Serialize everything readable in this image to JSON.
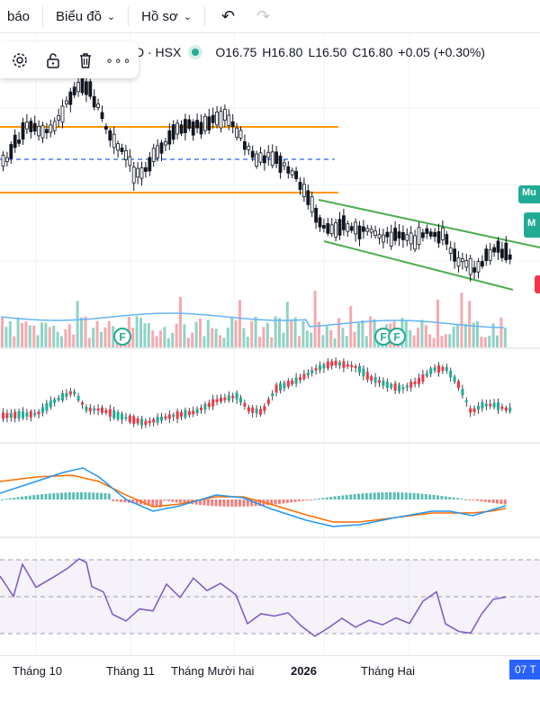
{
  "toolbar": {
    "items": [
      {
        "label": "báo",
        "chevron": false
      },
      {
        "label": "Biểu đồ",
        "chevron": true
      },
      {
        "label": "Hồ sơ",
        "chevron": true
      }
    ],
    "undo_icon": "undo-icon",
    "redo_icon": "redo-icon"
  },
  "legend": {
    "symbol": "D · HSX",
    "open": "O16.75",
    "high": "H16.80",
    "low": "L16.50",
    "close": "C16.80",
    "change": "+0.05 (+0.30%)",
    "status_color": "#22ab94"
  },
  "floating_toolbar": {
    "icons": [
      "gear-icon",
      "unlock-icon",
      "trash-icon",
      "more-icon"
    ],
    "more_label": "∘∘∘"
  },
  "price_tags": [
    {
      "label": "Mu",
      "color": "#22ab94"
    },
    {
      "label": "M",
      "color": "#22ab94"
    },
    {
      "label": "",
      "color": "#f23645"
    }
  ],
  "volume_markers": [
    "F",
    "F",
    "F"
  ],
  "x_axis": {
    "labels": [
      "Tháng 10",
      "Tháng 11",
      "Tháng Mười hai",
      "2026",
      "Tháng Hai"
    ],
    "date_tag": "07 T"
  },
  "colors": {
    "up": "#22ab94",
    "down": "#f23645",
    "channel": "#4caf50",
    "support": "#ff9800",
    "macd": "#2196f3",
    "signal": "#ff6d00",
    "rsi": "#7e57c2"
  },
  "chart_data": {
    "type": "candlestick",
    "price_close_series": [
      16.4,
      16.7,
      17.4,
      17.8,
      17.6,
      17.5,
      17.0,
      17.3,
      17.1,
      16.9,
      16.8,
      17.0,
      17.3,
      17.2,
      16.9,
      16.7,
      16.5,
      16.4,
      16.3,
      16.1,
      16.0,
      16.2,
      16.1,
      15.9,
      16.0,
      16.1,
      16.2,
      16.0,
      15.9,
      16.1,
      16.2,
      16.0,
      16.3,
      16.5,
      16.6,
      16.2,
      16.1,
      16.3,
      16.7,
      17.0
    ],
    "indicators": [
      "Volume",
      "MACD",
      "RSI"
    ]
  }
}
